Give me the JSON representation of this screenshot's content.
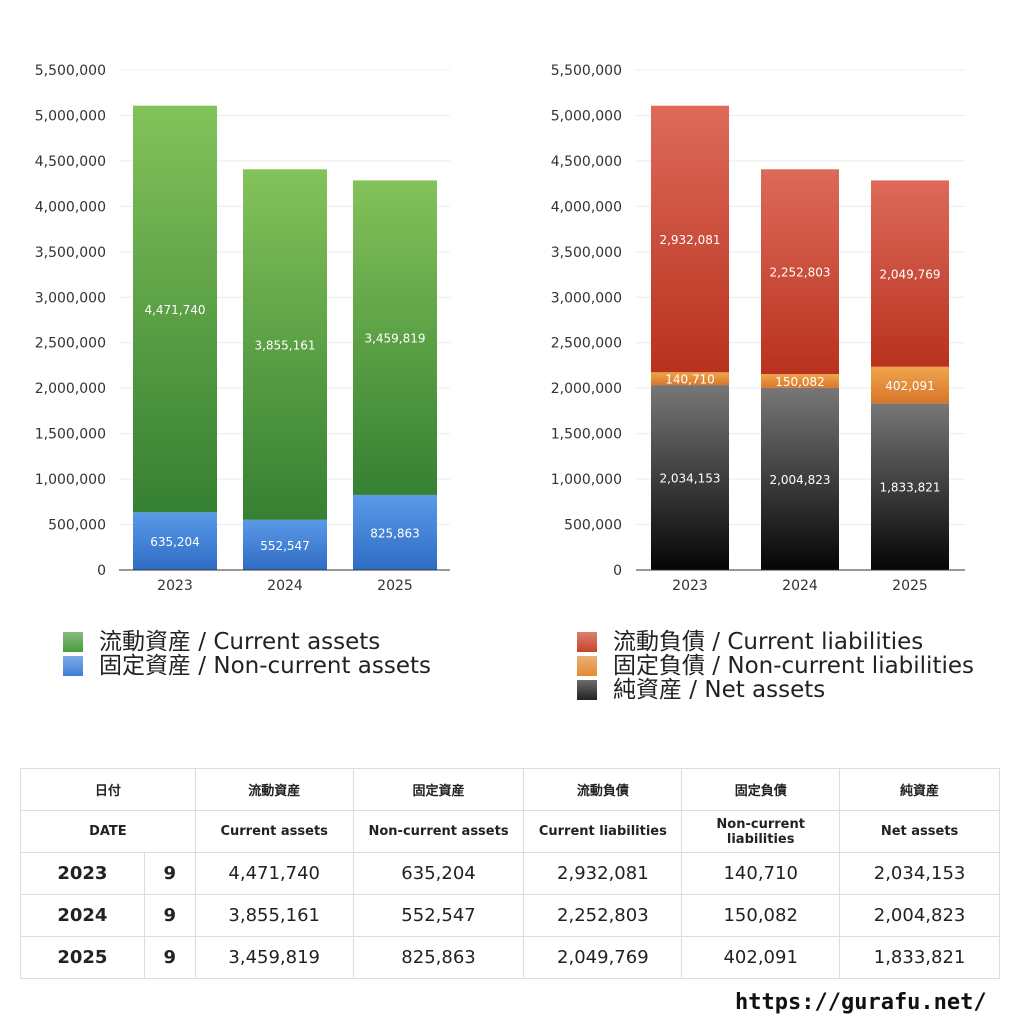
{
  "chart_data": [
    {
      "type": "bar",
      "stacked": true,
      "categories": [
        "2023",
        "2024",
        "2025"
      ],
      "ylim": [
        0,
        5500000
      ],
      "yticks": [
        "0",
        "500,000",
        "1,000,000",
        "1,500,000",
        "2,000,000",
        "2,500,000",
        "3,000,000",
        "3,500,000",
        "4,000,000",
        "4,500,000",
        "5,000,000",
        "5,500,000"
      ],
      "grid": true,
      "legend_position": "bottom",
      "series": [
        {
          "name": "固定資産 / Non-current assets",
          "values": [
            635204,
            552547,
            825863
          ],
          "labels": [
            "635,204",
            "552,547",
            "825,863"
          ],
          "color": "#3f7fd9"
        },
        {
          "name": "流動資産 / Current assets",
          "values": [
            4471740,
            3855161,
            3459819
          ],
          "labels": [
            "4,471,740",
            "3,855,161",
            "3,459,819"
          ],
          "color": "#4a9a3e"
        }
      ]
    },
    {
      "type": "bar",
      "stacked": true,
      "categories": [
        "2023",
        "2024",
        "2025"
      ],
      "ylim": [
        0,
        5500000
      ],
      "yticks": [
        "0",
        "500,000",
        "1,000,000",
        "1,500,000",
        "2,000,000",
        "2,500,000",
        "3,000,000",
        "3,500,000",
        "4,000,000",
        "4,500,000",
        "5,000,000",
        "5,500,000"
      ],
      "grid": true,
      "legend_position": "bottom",
      "series": [
        {
          "name": "純資産 / Net assets",
          "values": [
            2034153,
            2004823,
            1833821
          ],
          "labels": [
            "2,034,153",
            "2,004,823",
            "1,833,821"
          ],
          "color": "#222222"
        },
        {
          "name": "固定負債 / Non-current liabilities",
          "values": [
            140710,
            150082,
            402091
          ],
          "labels": [
            "140,710",
            "150,082",
            "402,091"
          ],
          "color": "#e38a30"
        },
        {
          "name": "流動負債 / Current liabilities",
          "values": [
            2932081,
            2252803,
            2049769
          ],
          "labels": [
            "2,932,081",
            "2,252,803",
            "2,049,769"
          ],
          "color": "#c8412c"
        }
      ]
    }
  ],
  "legend_left": [
    {
      "label": "流動資産 / Current assets",
      "color": "#4a9a3e"
    },
    {
      "label": "固定資産 / Non-current assets",
      "color": "#3f7fd9"
    }
  ],
  "legend_right": [
    {
      "label": "流動負債 / Current liabilities",
      "color": "#c8412c"
    },
    {
      "label": "固定負債 / Non-current liabilities",
      "color": "#e38a30"
    },
    {
      "label": "純資産 / Net assets",
      "color": "#222222"
    }
  ],
  "table": {
    "head_jp": [
      "日付",
      "流動資産",
      "固定資産",
      "流動負債",
      "固定負債",
      "純資産"
    ],
    "head_en": [
      "DATE",
      "Current assets",
      "Non-current assets",
      "Current liabilities",
      "Non-current liabilities",
      "Net assets"
    ],
    "rows": [
      {
        "year": "2023",
        "month": "9",
        "cells": [
          "4,471,740",
          "635,204",
          "2,932,081",
          "140,710",
          "2,034,153"
        ]
      },
      {
        "year": "2024",
        "month": "9",
        "cells": [
          "3,855,161",
          "552,547",
          "2,252,803",
          "150,082",
          "2,004,823"
        ]
      },
      {
        "year": "2025",
        "month": "9",
        "cells": [
          "3,459,819",
          "825,863",
          "2,049,769",
          "402,091",
          "1,833,821"
        ]
      }
    ]
  },
  "footer": "https://gurafu.net/"
}
